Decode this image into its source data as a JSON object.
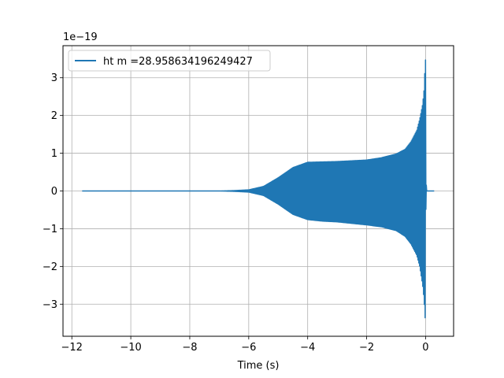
{
  "chart_data": {
    "type": "line",
    "xlabel": "Time (s)",
    "ylabel": "",
    "offset_label": "1e−19",
    "xlim": [
      -12.3,
      0.95
    ],
    "ylim": [
      -3.85,
      3.85
    ],
    "xticks": [
      -12,
      -10,
      -8,
      -6,
      -4,
      -2,
      0
    ],
    "xtick_labels": [
      "−12",
      "−10",
      "−8",
      "−6",
      "−4",
      "−2",
      "0"
    ],
    "yticks": [
      -3,
      -2,
      -1,
      0,
      1,
      2,
      3
    ],
    "ytick_labels": [
      "−3",
      "−2",
      "−1",
      "0",
      "1",
      "2",
      "3"
    ],
    "grid": true,
    "legend_position": "top-left",
    "series": [
      {
        "name": "ht m =28.958634196249427",
        "color": "#1f77b4",
        "t_start": -11.65,
        "t_merger": 0.0,
        "t_end": 0.3,
        "envelope": {
          "t": [
            -11.65,
            -7.0,
            -6.5,
            -6.0,
            -5.5,
            -5.0,
            -4.5,
            -4.0,
            -3.5,
            -3.0,
            -2.5,
            -2.0,
            -1.5,
            -1.0,
            -0.7,
            -0.5,
            -0.3,
            -0.2,
            -0.1,
            -0.05,
            -0.02,
            0.0,
            0.01,
            0.03,
            0.3
          ],
          "upper": [
            0.0,
            0.0,
            0.01,
            0.03,
            0.12,
            0.35,
            0.62,
            0.76,
            0.77,
            0.78,
            0.8,
            0.82,
            0.88,
            0.98,
            1.1,
            1.3,
            1.6,
            1.9,
            2.3,
            2.7,
            3.3,
            3.5,
            0.5,
            0.0,
            0.0
          ],
          "lower": [
            0.0,
            0.0,
            -0.01,
            -0.03,
            -0.12,
            -0.35,
            -0.62,
            -0.76,
            -0.8,
            -0.82,
            -0.86,
            -0.9,
            -0.95,
            -1.05,
            -1.2,
            -1.4,
            -1.7,
            -2.0,
            -2.5,
            -2.9,
            -3.35,
            -3.4,
            -0.5,
            0.0,
            0.0
          ]
        }
      }
    ]
  }
}
